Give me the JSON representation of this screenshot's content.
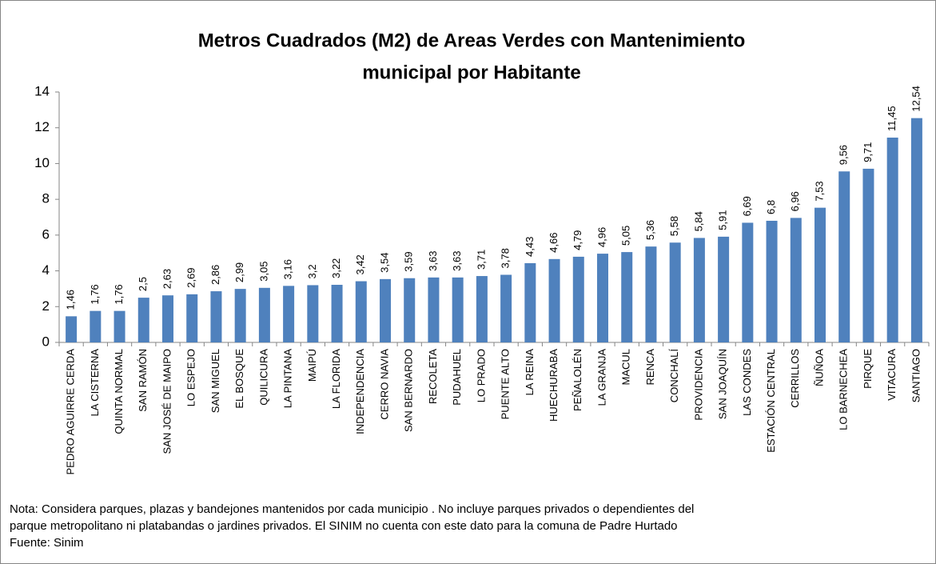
{
  "chart_data": {
    "type": "bar",
    "title": [
      "Metros Cuadrados (M2) de Areas Verdes con Mantenimiento",
      "municipal por Habitante"
    ],
    "categories": [
      "PEDRO AGUIRRE CERDA",
      "LA CISTERNA",
      "QUINTA NORMAL",
      "SAN RAMÓN",
      "SAN JOSÉ DE MAIPO",
      "LO ESPEJO",
      "SAN MIGUEL",
      "EL BOSQUE",
      "QUILICURA",
      "LA PINTANA",
      "MAIPÚ",
      "LA FLORIDA",
      "INDEPENDENCIA",
      "CERRO NAVIA",
      "SAN BERNARDO",
      "RECOLETA",
      "PUDAHUEL",
      "LO PRADO",
      "PUENTE ALTO",
      "LA REINA",
      "HUECHURABA",
      "PEÑALOLÉN",
      "LA GRANJA",
      "MACUL",
      "RENCA",
      "CONCHALÍ",
      "PROVIDENCIA",
      "SAN JOAQUÍN",
      "LAS CONDES",
      "ESTACIÓN CENTRAL",
      "CERRILLOS",
      "ÑUÑOA",
      "LO BARNECHEA",
      "PIRQUE",
      "VITACURA",
      "SANTIAGO"
    ],
    "values": [
      1.46,
      1.76,
      1.76,
      2.5,
      2.63,
      2.69,
      2.86,
      2.99,
      3.05,
      3.16,
      3.2,
      3.22,
      3.42,
      3.54,
      3.59,
      3.63,
      3.63,
      3.71,
      3.78,
      4.43,
      4.66,
      4.79,
      4.96,
      5.05,
      5.36,
      5.58,
      5.84,
      5.91,
      6.69,
      6.8,
      6.96,
      7.53,
      9.56,
      9.71,
      11.45,
      12.54
    ],
    "value_labels": [
      "1,46",
      "1,76",
      "1,76",
      "2,5",
      "2,63",
      "2,69",
      "2,86",
      "2,99",
      "3,05",
      "3,16",
      "3,2",
      "3,22",
      "3,42",
      "3,54",
      "3,59",
      "3,63",
      "3,63",
      "3,71",
      "3,78",
      "4,43",
      "4,66",
      "4,79",
      "4,96",
      "5,05",
      "5,36",
      "5,58",
      "5,84",
      "5,91",
      "6,69",
      "6,8",
      "6,96",
      "7,53",
      "9,56",
      "9,71",
      "11,45",
      "12,54"
    ],
    "color": "#4f81bd",
    "ylim": [
      0,
      14
    ],
    "yticks": [
      0,
      2,
      4,
      6,
      8,
      10,
      12,
      14
    ],
    "grid": false,
    "notes": [
      "Nota: Considera parques, plazas y bandejones mantenidos por cada municipio . No incluye parques privados o dependientes del",
      "parque metropolitano ni  platabandas o jardines privados. El SINIM no cuenta con este dato para la comuna de Padre Hurtado",
      "Fuente: Sinim"
    ]
  }
}
